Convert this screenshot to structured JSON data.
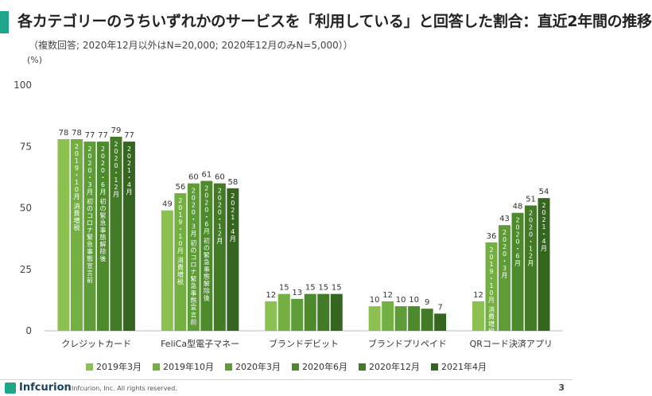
{
  "header": {
    "title": "各カテゴリーのうちいずれかのサービスを「利用している」と回答した割合：直近2年間の推移",
    "subtitle": "（複数回答; 2020年12月以外はN=20,000; 2020年12月のみN=5,000））",
    "unit": "(%)"
  },
  "footer": {
    "logo_text": "Infcurion",
    "copyright": "Infcurion, Inc.  All rights reserved.",
    "page_number": "3"
  },
  "colors": {
    "accent": "#1fa58a",
    "series": [
      "#8cc152",
      "#73b041",
      "#5e9c37",
      "#4d8a2c",
      "#437a26",
      "#356620"
    ]
  },
  "chart_data": {
    "type": "bar",
    "categories": [
      "クレジットカード",
      "FeliCa型電子マネー",
      "ブランドデビット",
      "ブランドプリペイド",
      "QRコード決済アプリ"
    ],
    "series": [
      {
        "name": "2019年3月",
        "values": [
          78,
          49,
          12,
          10,
          12
        ]
      },
      {
        "name": "2019年10月",
        "values": [
          78,
          56,
          15,
          12,
          36
        ]
      },
      {
        "name": "2020年3月",
        "values": [
          77,
          60,
          13,
          10,
          43
        ]
      },
      {
        "name": "2020年6月",
        "values": [
          77,
          61,
          15,
          10,
          48
        ]
      },
      {
        "name": "2020年12月",
        "values": [
          79,
          60,
          15,
          9,
          51
        ]
      },
      {
        "name": "2021年4月",
        "values": [
          77,
          58,
          15,
          7,
          54
        ]
      }
    ],
    "ylim": [
      0,
      100
    ],
    "yticks": [
      0,
      25,
      50,
      75,
      100
    ],
    "grid": false,
    "legend": "bottom",
    "bar_annotations": [
      {
        "category": 0,
        "series": 1,
        "text": "2019・10月 消費増税"
      },
      {
        "category": 0,
        "series": 2,
        "text": "2020・3月 初のコロナ緊急事態宣言前"
      },
      {
        "category": 0,
        "series": 3,
        "text": "2020・6月 初の緊急事態解除後"
      },
      {
        "category": 0,
        "series": 4,
        "text": "2020・12月"
      },
      {
        "category": 0,
        "series": 5,
        "text": "2021・4月"
      },
      {
        "category": 1,
        "series": 1,
        "text": "2019・10月 消費増税"
      },
      {
        "category": 1,
        "series": 2,
        "text": "2020・3月 初のコロナ緊急事態宣言前"
      },
      {
        "category": 1,
        "series": 3,
        "text": "2020・6月 初の緊急事態解除後"
      },
      {
        "category": 1,
        "series": 4,
        "text": "2020・12月"
      },
      {
        "category": 1,
        "series": 5,
        "text": "2021・4月"
      },
      {
        "category": 4,
        "series": 1,
        "text": "2019・10月 消費増税"
      },
      {
        "category": 4,
        "series": 2,
        "text": "2020・3月"
      },
      {
        "category": 4,
        "series": 3,
        "text": "2020・6月"
      },
      {
        "category": 4,
        "series": 4,
        "text": "2020・12月"
      },
      {
        "category": 4,
        "series": 5,
        "text": "2021・4月"
      }
    ]
  }
}
